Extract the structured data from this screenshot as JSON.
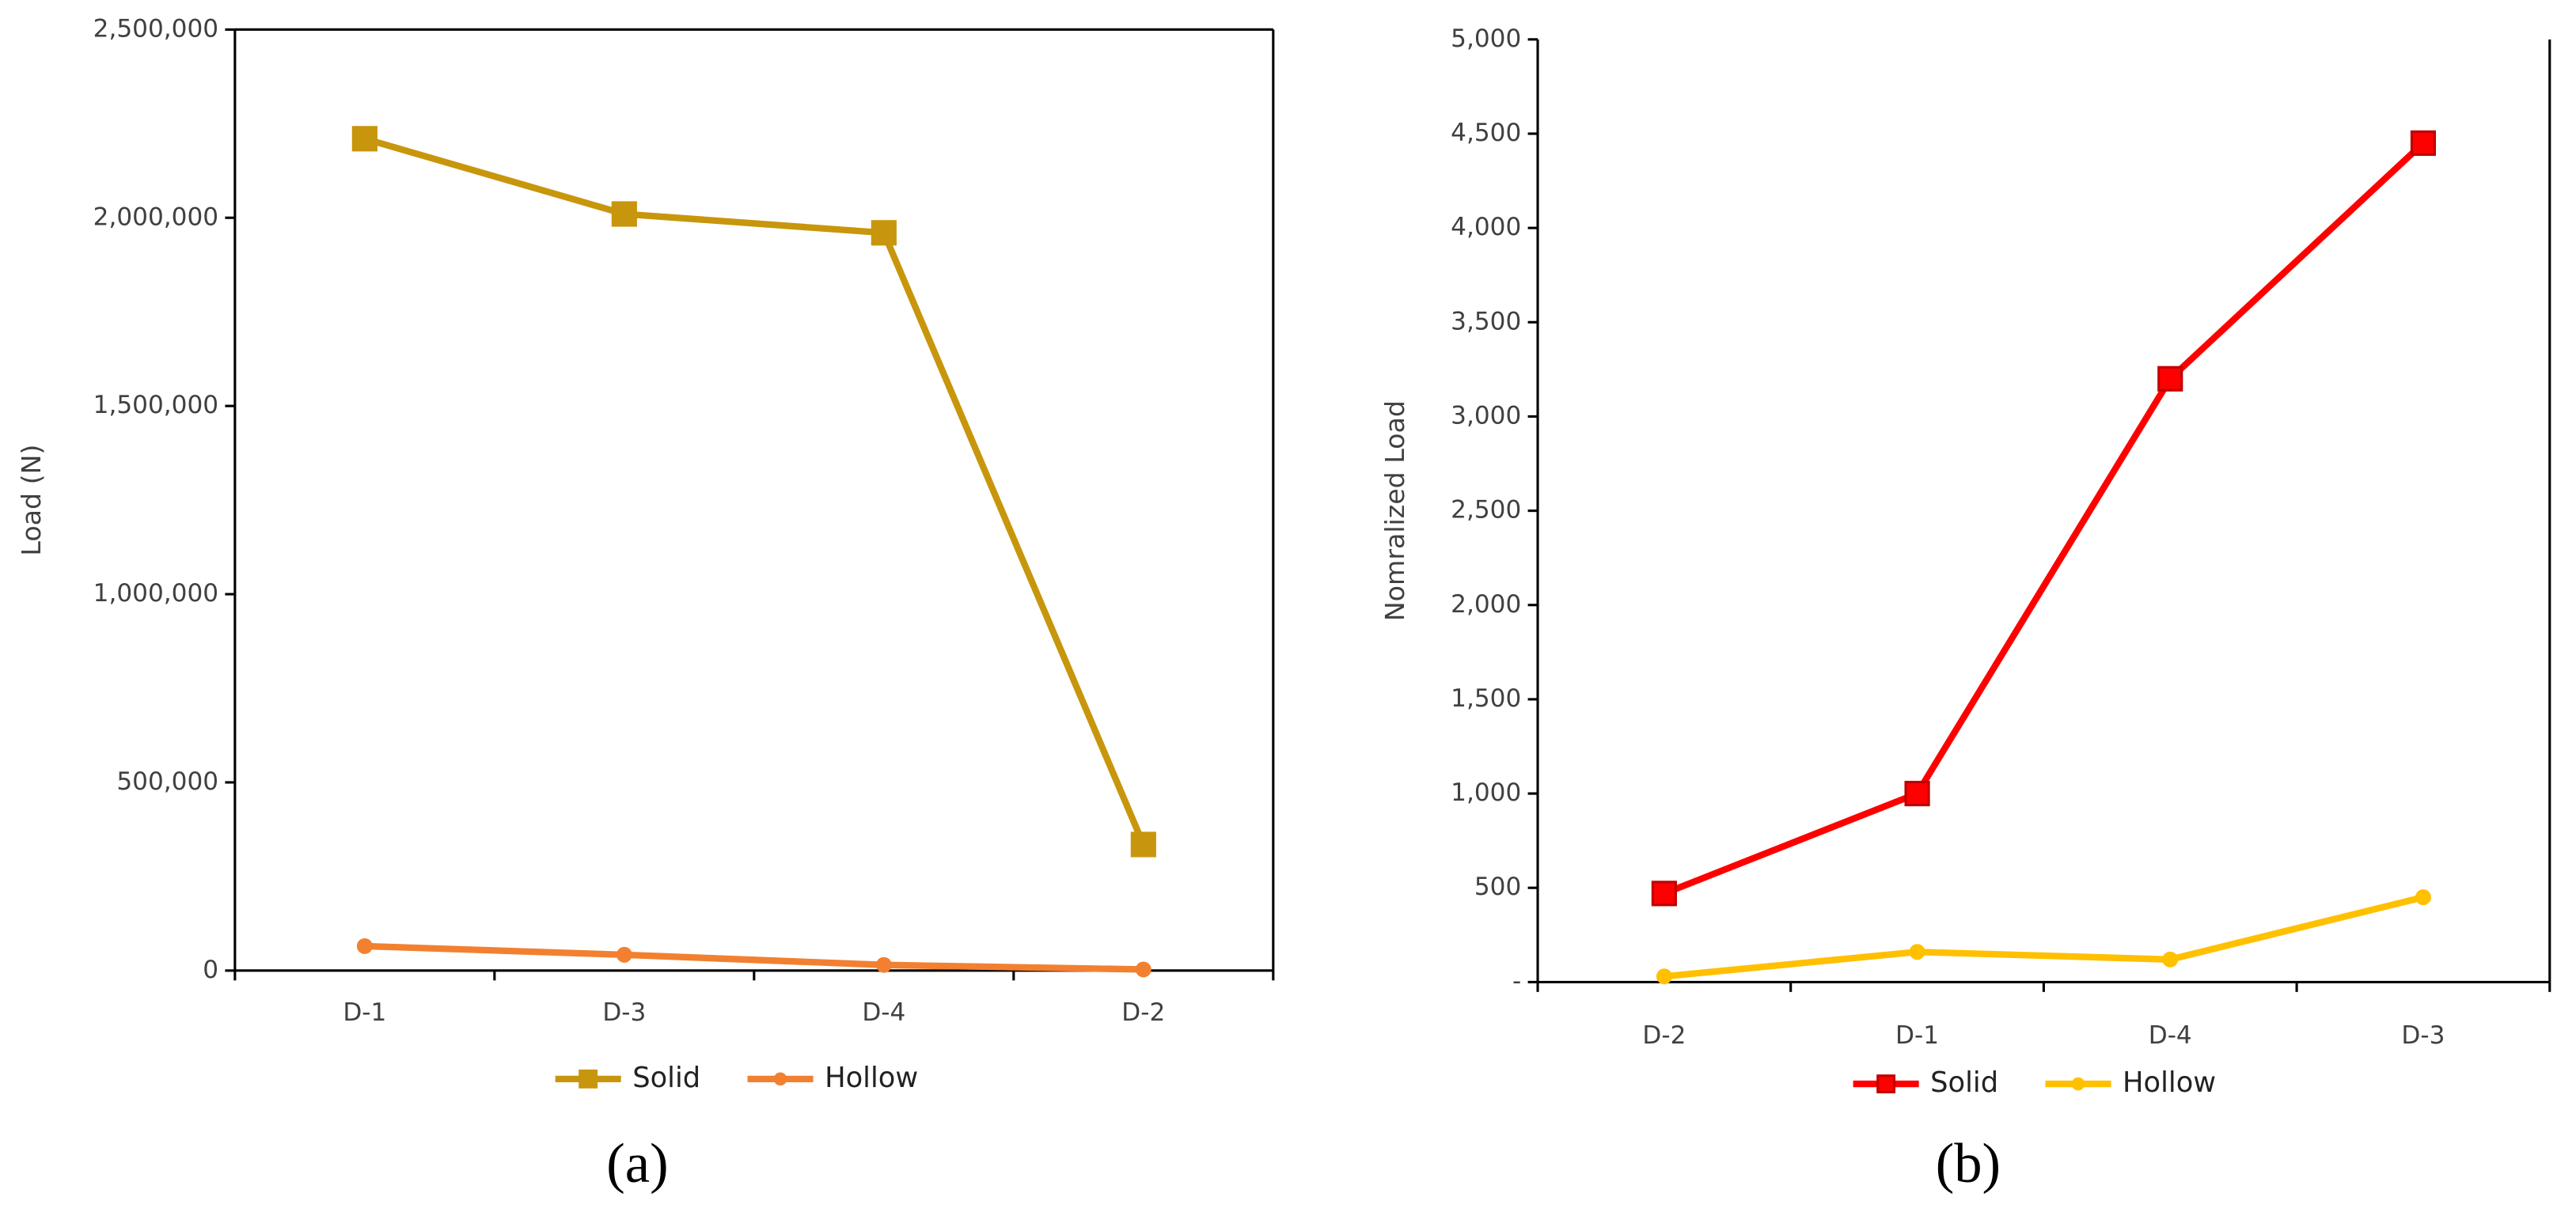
{
  "chart_data": [
    {
      "type": "line",
      "caption": "(a)",
      "ylabel": "Load (N)",
      "categories": [
        "D-1",
        "D-3",
        "D-4",
        "D-2"
      ],
      "series": [
        {
          "name": "Solid",
          "color": "#c8960c",
          "marker": "square",
          "values": [
            2210000,
            2010000,
            1960000,
            335000
          ]
        },
        {
          "name": "Hollow",
          "color": "#f28030",
          "marker": "circle",
          "values": [
            65000,
            42000,
            15000,
            3000
          ]
        }
      ],
      "ylim": [
        0,
        2500000
      ],
      "yticks": [
        0,
        {
          "value": 500000,
          "label": "500,000"
        },
        {
          "value": 1000000,
          "label": "1,000,000"
        },
        {
          "value": 1500000,
          "label": "1,500,000"
        },
        {
          "value": 2000000,
          "label": "2,000,000"
        },
        {
          "value": 2500000,
          "label": "2,500,000"
        }
      ],
      "grid": false,
      "legend": "bottom"
    },
    {
      "type": "line",
      "caption": "(b)",
      "ylabel": "Nomralized  Load",
      "categories": [
        "D-2",
        "D-1",
        "D-4",
        "D-3"
      ],
      "series": [
        {
          "name": "Solid",
          "color": "#ff0000",
          "marker": "square",
          "values": [
            470,
            1000,
            3200,
            4450
          ]
        },
        {
          "name": "Hollow",
          "color": "#ffc000",
          "marker": "circle",
          "values": [
            30,
            160,
            120,
            450
          ]
        }
      ],
      "ylim": [
        0,
        5000
      ],
      "yticks": [
        {
          "value": 0,
          "label": "-"
        },
        500,
        {
          "value": 1000,
          "label": "1,000"
        },
        {
          "value": 1500,
          "label": "1,500"
        },
        {
          "value": 2000,
          "label": "2,000"
        },
        {
          "value": 2500,
          "label": "2,500"
        },
        {
          "value": 3000,
          "label": "3,000"
        },
        {
          "value": 3500,
          "label": "3,500"
        },
        {
          "value": 4000,
          "label": "4,000"
        },
        {
          "value": 4500,
          "label": "4,500"
        },
        {
          "value": 5000,
          "label": "5,000"
        }
      ],
      "grid": false,
      "legend": "bottom"
    }
  ]
}
